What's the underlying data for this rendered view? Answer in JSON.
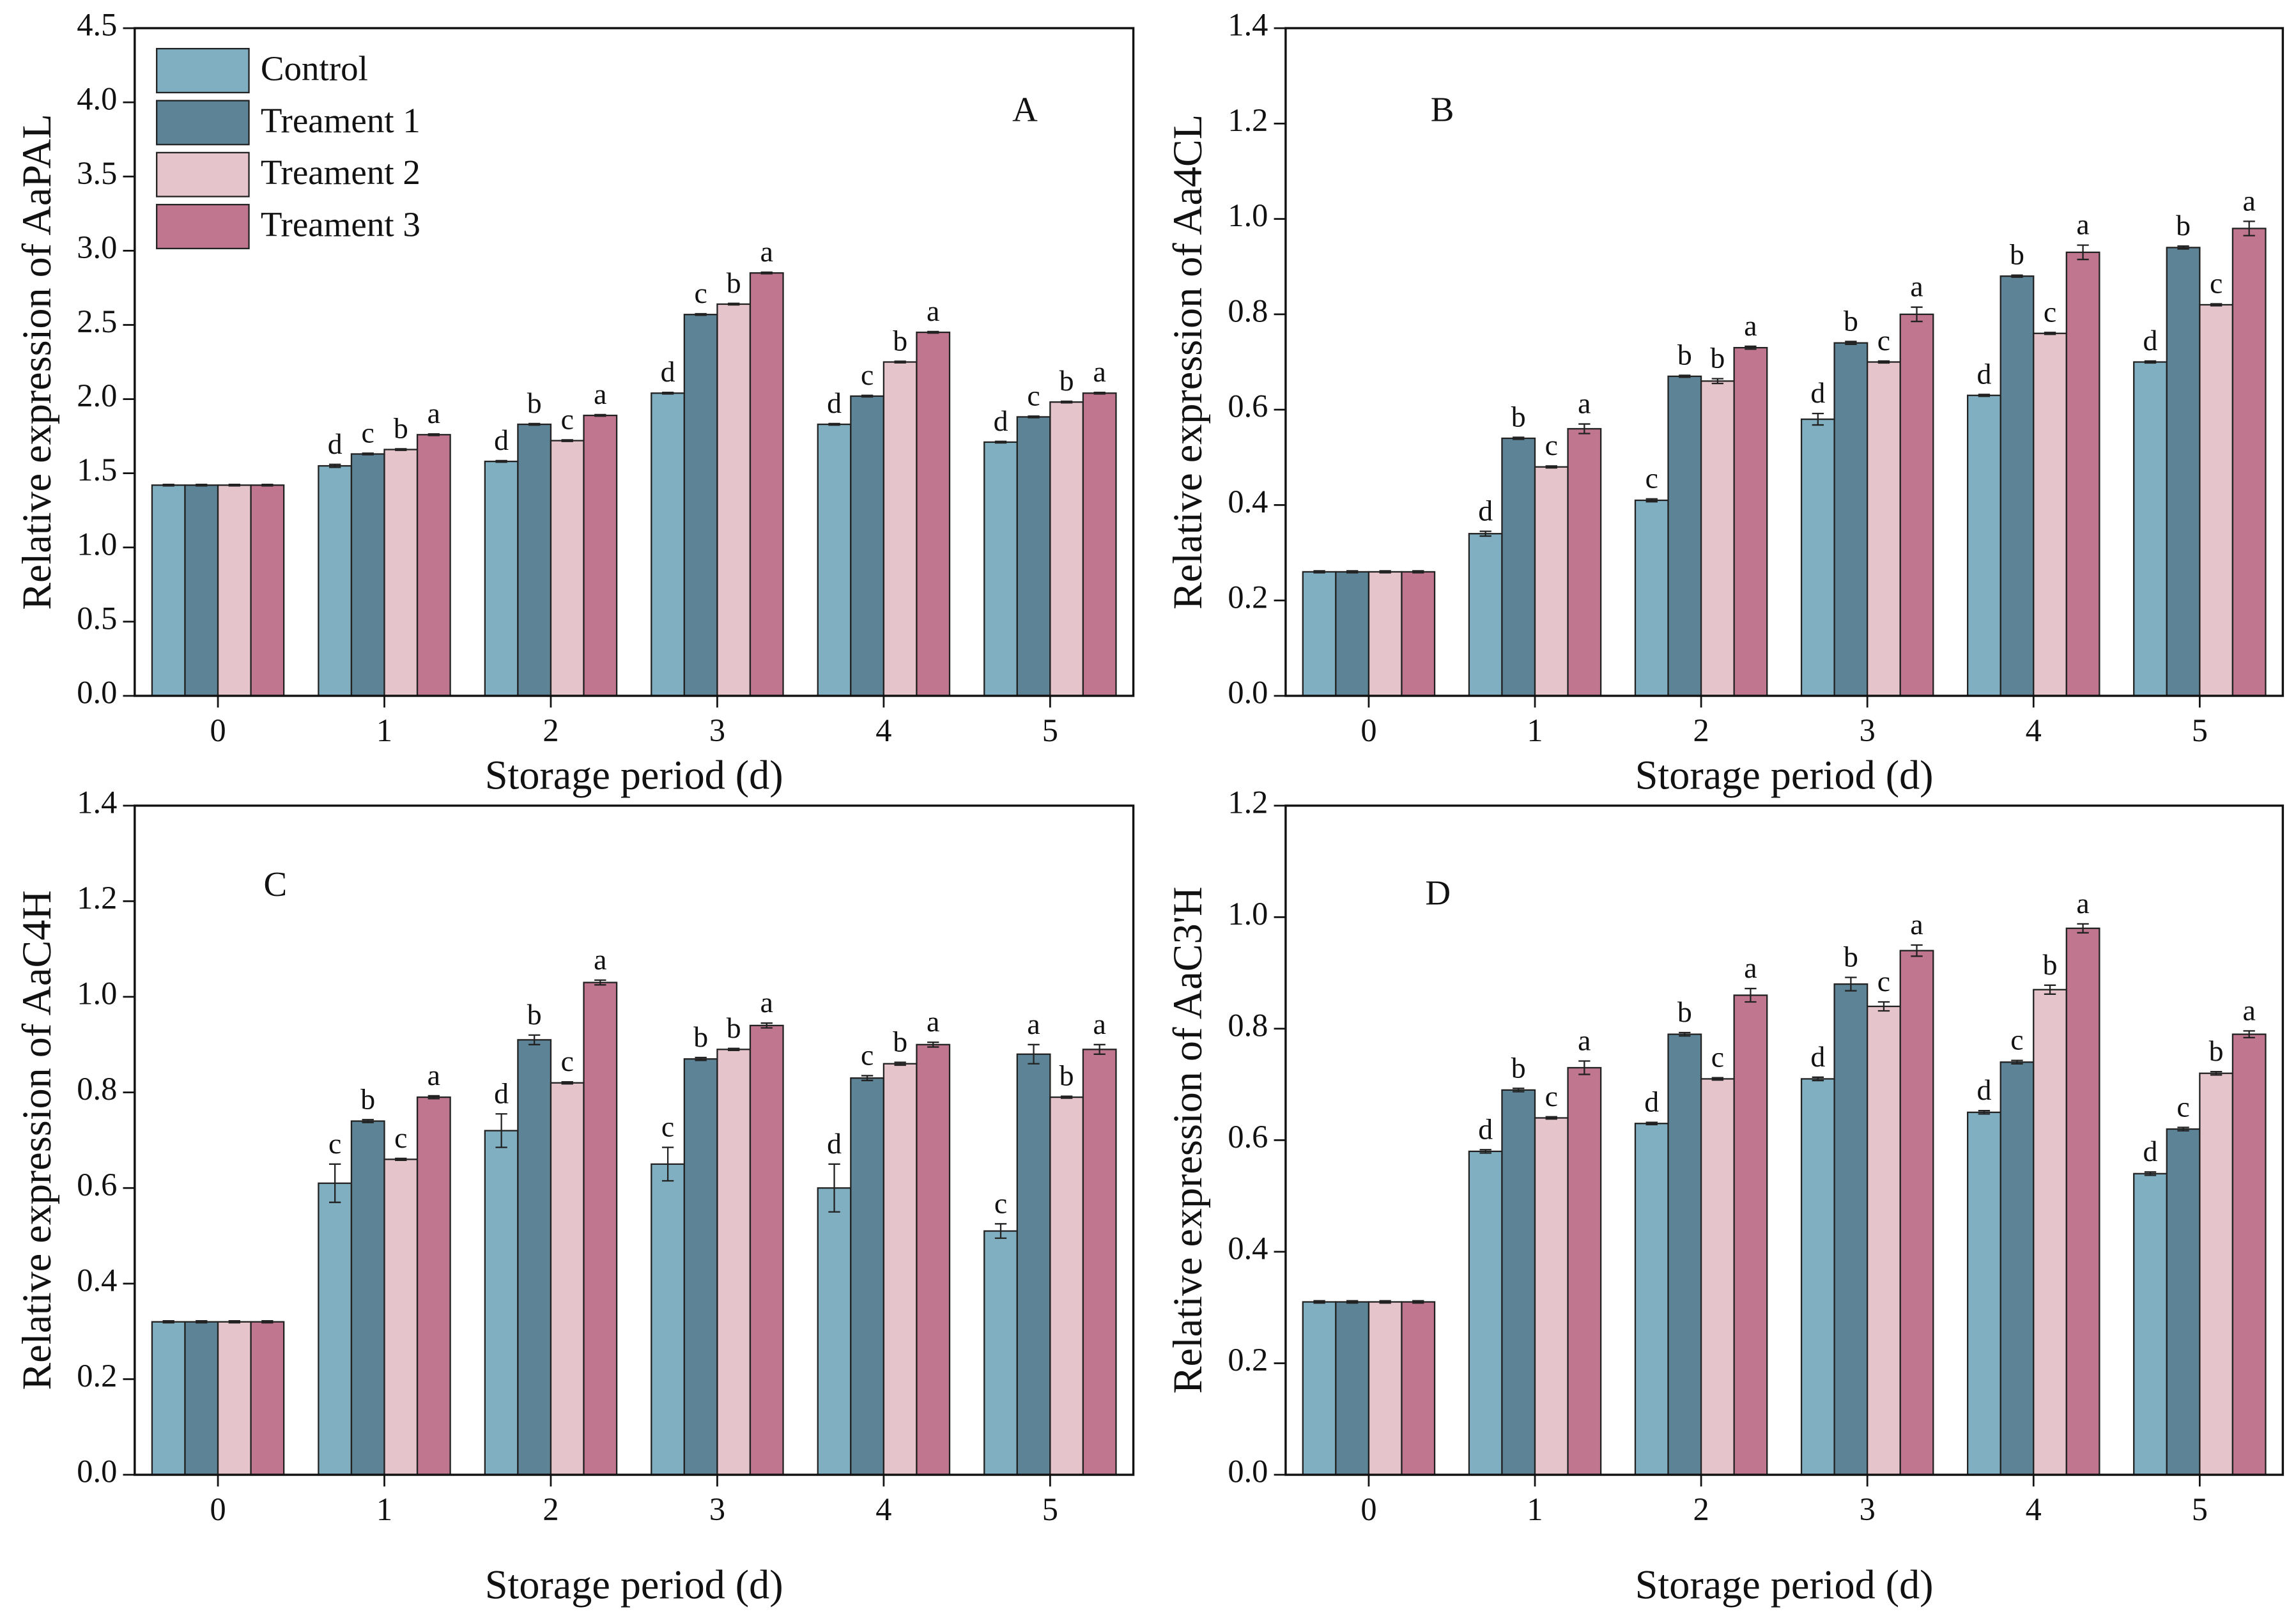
{
  "chart_data": [
    {
      "type": "bar",
      "panel": "A",
      "ylabel": "Relative expression of AaPAL",
      "xlabel": "Storage period (d)",
      "categories": [
        "0",
        "1",
        "2",
        "3",
        "4",
        "5"
      ],
      "ylim": [
        0,
        4.5
      ],
      "yticks": [
        {
          "value": 0,
          "label": "0.0"
        },
        0.5,
        {
          "value": 1,
          "label": "1.0"
        },
        1.5,
        {
          "value": 2,
          "label": "2.0"
        },
        2.5,
        {
          "value": 3,
          "label": "3.0"
        },
        3.5,
        {
          "value": 4,
          "label": "4.0"
        },
        4.5
      ],
      "legend": "upper left",
      "series": [
        {
          "name": "Control",
          "color": "#7fafc0",
          "values": [
            1.42,
            1.55,
            1.58,
            2.04,
            1.83,
            1.71
          ],
          "errors": [
            0.005,
            0.01,
            0.005,
            0.005,
            0.005,
            0.005
          ],
          "letters": [
            null,
            "d",
            "d",
            "d",
            "d",
            "d"
          ]
        },
        {
          "name": "Treament 1",
          "color": "#5d8396",
          "values": [
            1.42,
            1.63,
            1.83,
            2.57,
            2.02,
            1.88
          ],
          "errors": [
            0.005,
            0.005,
            0.005,
            0.005,
            0.005,
            0.005
          ],
          "letters": [
            null,
            "c",
            "b",
            "c",
            "c",
            "c"
          ]
        },
        {
          "name": "Treament 2",
          "color": "#e6c4cb",
          "values": [
            1.42,
            1.66,
            1.72,
            2.64,
            2.25,
            1.98
          ],
          "errors": [
            0.005,
            0.005,
            0.005,
            0.005,
            0.005,
            0.005
          ],
          "letters": [
            null,
            "b",
            "c",
            "b",
            "b",
            "b"
          ]
        },
        {
          "name": "Treament 3",
          "color": "#c0768e",
          "values": [
            1.42,
            1.76,
            1.89,
            2.85,
            2.45,
            2.04
          ],
          "errors": [
            0.005,
            0.005,
            0.005,
            0.005,
            0.005,
            0.005
          ],
          "letters": [
            null,
            "a",
            "a",
            "a",
            "a",
            "a"
          ]
        }
      ]
    },
    {
      "type": "bar",
      "panel": "B",
      "ylabel": "Relative expression of Aa4CL",
      "xlabel": "Storage period (d)",
      "categories": [
        "0",
        "1",
        "2",
        "3",
        "4",
        "5"
      ],
      "ylim": [
        0,
        1.4
      ],
      "yticks": [
        {
          "value": 0,
          "label": "0.0"
        },
        0.2,
        0.4,
        0.6,
        0.8,
        {
          "value": 1,
          "label": "1.0"
        },
        1.2,
        1.4
      ],
      "series": [
        {
          "color": "#7fafc0",
          "values": [
            0.26,
            0.34,
            0.41,
            0.58,
            0.63,
            0.7
          ],
          "errors": [
            0.002,
            0.005,
            0.003,
            0.012,
            0.002,
            0.002
          ],
          "letters": [
            null,
            "d",
            "c",
            "d",
            "d",
            "d"
          ]
        },
        {
          "color": "#5d8396",
          "values": [
            0.26,
            0.54,
            0.67,
            0.74,
            0.88,
            0.94
          ],
          "errors": [
            0.002,
            0.002,
            0.002,
            0.003,
            0.002,
            0.003
          ],
          "letters": [
            null,
            "b",
            "b",
            "b",
            "b",
            "b"
          ]
        },
        {
          "color": "#e6c4cb",
          "values": [
            0.26,
            0.48,
            0.66,
            0.7,
            0.76,
            0.82
          ],
          "errors": [
            0.002,
            0.002,
            0.005,
            0.002,
            0.002,
            0.002
          ],
          "letters": [
            null,
            "c",
            "b",
            "c",
            "c",
            "c"
          ]
        },
        {
          "color": "#c0768e",
          "values": [
            0.26,
            0.56,
            0.73,
            0.8,
            0.93,
            0.98
          ],
          "errors": [
            0.002,
            0.01,
            0.003,
            0.015,
            0.015,
            0.015
          ],
          "letters": [
            null,
            "a",
            "a",
            "a",
            "a",
            "a"
          ]
        }
      ]
    },
    {
      "type": "bar",
      "panel": "C",
      "ylabel": "Relative expression of AaC4H",
      "xlabel": "Storage period (d)",
      "categories": [
        "0",
        "1",
        "2",
        "3",
        "4",
        "5"
      ],
      "ylim": [
        0,
        1.4
      ],
      "yticks": [
        {
          "value": 0,
          "label": "0.0"
        },
        0.2,
        0.4,
        0.6,
        0.8,
        {
          "value": 1,
          "label": "1.0"
        },
        1.2,
        1.4
      ],
      "series": [
        {
          "color": "#7fafc0",
          "values": [
            0.32,
            0.61,
            0.72,
            0.65,
            0.6,
            0.51
          ],
          "errors": [
            0.002,
            0.04,
            0.035,
            0.035,
            0.05,
            0.015
          ],
          "letters": [
            null,
            "c",
            "d",
            "c",
            "d",
            "c"
          ]
        },
        {
          "color": "#5d8396",
          "values": [
            0.32,
            0.74,
            0.91,
            0.87,
            0.83,
            0.88
          ],
          "errors": [
            0.002,
            0.003,
            0.01,
            0.003,
            0.005,
            0.02
          ],
          "letters": [
            null,
            "b",
            "b",
            "b",
            "c",
            "a"
          ]
        },
        {
          "color": "#e6c4cb",
          "values": [
            0.32,
            0.66,
            0.82,
            0.89,
            0.86,
            0.79
          ],
          "errors": [
            0.002,
            0.002,
            0.002,
            0.002,
            0.003,
            0.002
          ],
          "letters": [
            null,
            "c",
            "c",
            "b",
            "b",
            "b"
          ]
        },
        {
          "color": "#c0768e",
          "values": [
            0.32,
            0.79,
            1.03,
            0.94,
            0.9,
            0.89
          ],
          "errors": [
            0.002,
            0.003,
            0.005,
            0.005,
            0.005,
            0.01
          ],
          "letters": [
            null,
            "a",
            "a",
            "a",
            "a",
            "a"
          ]
        }
      ]
    },
    {
      "type": "bar",
      "panel": "D",
      "ylabel": "Relative expression of AaC3'H",
      "xlabel": "Storage period (d)",
      "categories": [
        "0",
        "1",
        "2",
        "3",
        "4",
        "5"
      ],
      "ylim": [
        0,
        1.2
      ],
      "yticks": [
        {
          "value": 0,
          "label": "0.0"
        },
        0.2,
        0.4,
        0.6,
        0.8,
        {
          "value": 1,
          "label": "1.0"
        },
        1.2
      ],
      "series": [
        {
          "color": "#7fafc0",
          "values": [
            0.31,
            0.58,
            0.63,
            0.71,
            0.65,
            0.54
          ],
          "errors": [
            0.002,
            0.003,
            0.002,
            0.003,
            0.003,
            0.003
          ],
          "letters": [
            null,
            "d",
            "d",
            "d",
            "d",
            "d"
          ]
        },
        {
          "color": "#5d8396",
          "values": [
            0.31,
            0.69,
            0.79,
            0.88,
            0.74,
            0.62
          ],
          "errors": [
            0.002,
            0.003,
            0.003,
            0.012,
            0.003,
            0.003
          ],
          "letters": [
            null,
            "b",
            "b",
            "b",
            "c",
            "c"
          ]
        },
        {
          "color": "#e6c4cb",
          "values": [
            0.31,
            0.64,
            0.71,
            0.84,
            0.87,
            0.72
          ],
          "errors": [
            0.002,
            0.002,
            0.002,
            0.008,
            0.008,
            0.003
          ],
          "letters": [
            null,
            "c",
            "c",
            "c",
            "b",
            "b"
          ]
        },
        {
          "color": "#c0768e",
          "values": [
            0.31,
            0.73,
            0.86,
            0.94,
            0.98,
            0.79
          ],
          "errors": [
            0.002,
            0.012,
            0.012,
            0.01,
            0.008,
            0.006
          ],
          "letters": [
            null,
            "a",
            "a",
            "a",
            "a",
            "a"
          ]
        }
      ]
    }
  ]
}
